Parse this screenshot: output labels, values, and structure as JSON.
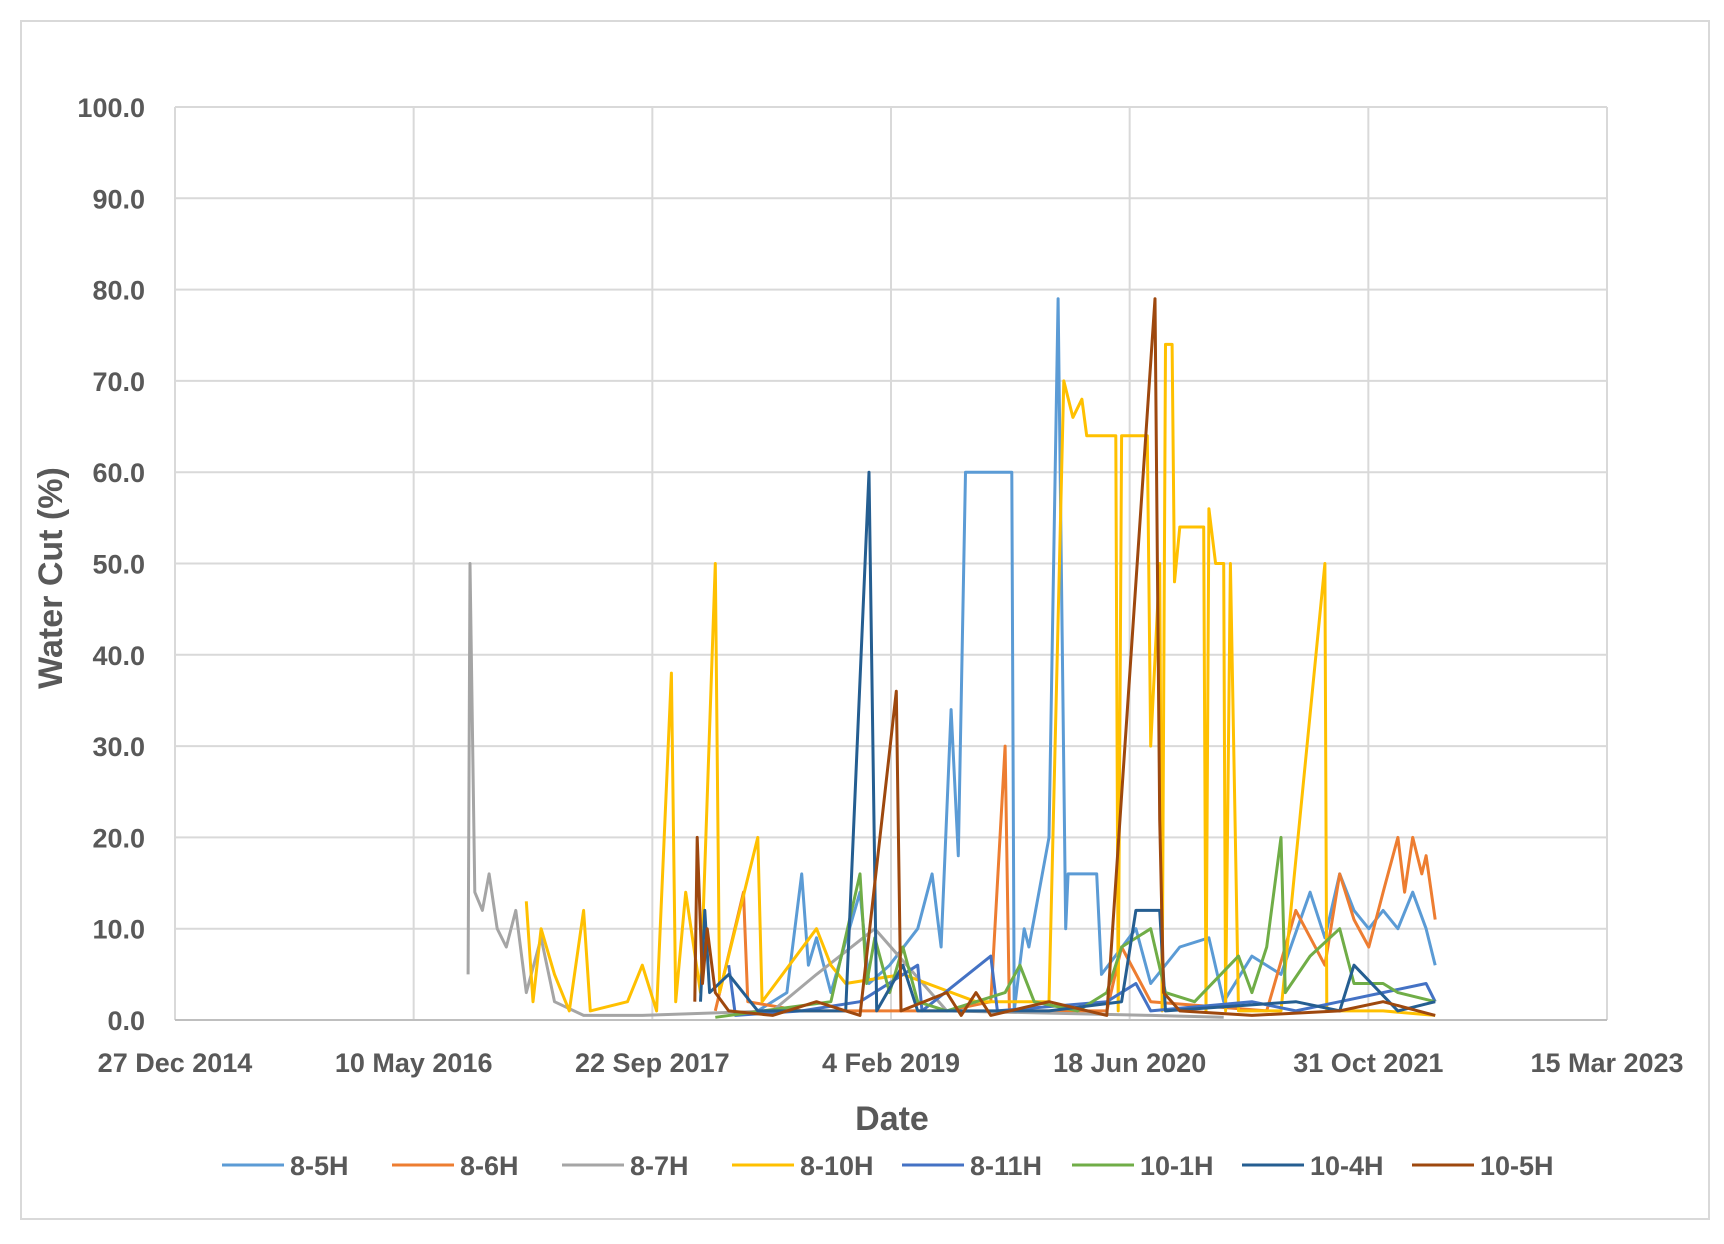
{
  "chart_data": {
    "type": "line",
    "title": "",
    "xlabel": "Date",
    "ylabel": "Water Cut   (%)",
    "xlim": [
      "2014-12-27",
      "2023-03-15"
    ],
    "ylim": [
      0,
      100
    ],
    "x_ticks": [
      "27 Dec 2014",
      "10 May 2016",
      "22 Sep 2017",
      "4 Feb 2019",
      "18 Jun 2020",
      "31 Oct 2021",
      "15 Mar 2023"
    ],
    "y_ticks": [
      "0.0",
      "10.0",
      "20.0",
      "30.0",
      "40.0",
      "50.0",
      "60.0",
      "70.0",
      "80.0",
      "90.0",
      "100.0"
    ],
    "grid": true,
    "legend_position": "bottom",
    "series": [
      {
        "name": "8-5H",
        "color": "#5b9bd5",
        "points": [
          [
            "2018-05-01",
            1
          ],
          [
            "2018-07-01",
            3
          ],
          [
            "2018-08-01",
            16
          ],
          [
            "2018-08-15",
            6
          ],
          [
            "2018-09-01",
            9
          ],
          [
            "2018-10-01",
            3
          ],
          [
            "2018-12-01",
            14
          ],
          [
            "2018-12-20",
            4
          ],
          [
            "2019-02-01",
            6
          ],
          [
            "2019-04-01",
            10
          ],
          [
            "2019-05-01",
            16
          ],
          [
            "2019-05-20",
            8
          ],
          [
            "2019-06-10",
            34
          ],
          [
            "2019-06-25",
            18
          ],
          [
            "2019-07-10",
            60
          ],
          [
            "2019-10-15",
            60
          ],
          [
            "2019-10-20",
            1
          ],
          [
            "2019-11-10",
            10
          ],
          [
            "2019-11-20",
            8
          ],
          [
            "2020-01-01",
            20
          ],
          [
            "2020-01-20",
            79
          ],
          [
            "2020-02-05",
            10
          ],
          [
            "2020-02-10",
            16
          ],
          [
            "2020-04-10",
            16
          ],
          [
            "2020-04-20",
            5
          ],
          [
            "2020-07-01",
            10
          ],
          [
            "2020-08-01",
            4
          ],
          [
            "2020-10-01",
            8
          ],
          [
            "2020-12-01",
            9
          ],
          [
            "2021-01-01",
            2
          ],
          [
            "2021-03-01",
            7
          ],
          [
            "2021-05-01",
            5
          ],
          [
            "2021-07-01",
            14
          ],
          [
            "2021-08-01",
            9
          ],
          [
            "2021-09-01",
            16
          ],
          [
            "2021-10-01",
            12
          ],
          [
            "2021-11-01",
            10
          ],
          [
            "2021-12-01",
            12
          ],
          [
            "2022-01-01",
            10
          ],
          [
            "2022-02-01",
            14
          ],
          [
            "2022-03-01",
            10
          ],
          [
            "2022-03-20",
            6
          ]
        ]
      },
      {
        "name": "8-6H",
        "color": "#ed7d31",
        "points": [
          [
            "2018-02-01",
            1
          ],
          [
            "2018-04-01",
            14
          ],
          [
            "2018-04-10",
            2
          ],
          [
            "2018-08-01",
            1
          ],
          [
            "2019-01-01",
            1
          ],
          [
            "2019-06-01",
            1
          ],
          [
            "2019-09-01",
            2
          ],
          [
            "2019-10-01",
            30
          ],
          [
            "2019-10-10",
            1
          ],
          [
            "2020-05-01",
            1
          ],
          [
            "2020-06-01",
            8
          ],
          [
            "2020-08-01",
            2
          ],
          [
            "2021-04-01",
            1
          ],
          [
            "2021-06-01",
            12
          ],
          [
            "2021-08-01",
            6
          ],
          [
            "2021-09-01",
            16
          ],
          [
            "2021-10-01",
            11
          ],
          [
            "2021-11-01",
            8
          ],
          [
            "2021-12-01",
            14
          ],
          [
            "2022-01-01",
            20
          ],
          [
            "2022-01-15",
            14
          ],
          [
            "2022-02-01",
            20
          ],
          [
            "2022-02-20",
            16
          ],
          [
            "2022-03-01",
            18
          ],
          [
            "2022-03-20",
            11
          ]
        ]
      },
      {
        "name": "8-7H",
        "color": "#a5a5a5",
        "points": [
          [
            "2016-09-01",
            5
          ],
          [
            "2016-09-05",
            50
          ],
          [
            "2016-09-15",
            14
          ],
          [
            "2016-10-01",
            12
          ],
          [
            "2016-10-15",
            16
          ],
          [
            "2016-11-01",
            10
          ],
          [
            "2016-11-20",
            8
          ],
          [
            "2016-12-10",
            12
          ],
          [
            "2017-01-01",
            3
          ],
          [
            "2017-02-01",
            9
          ],
          [
            "2017-03-01",
            2
          ],
          [
            "2017-05-01",
            0.5
          ],
          [
            "2017-09-01",
            0.5
          ],
          [
            "2018-06-01",
            1
          ],
          [
            "2018-09-01",
            5
          ],
          [
            "2019-01-01",
            10
          ],
          [
            "2019-06-01",
            1
          ],
          [
            "2020-08-01",
            0.5
          ],
          [
            "2021-01-01",
            0.3
          ]
        ]
      },
      {
        "name": "8-10H",
        "color": "#ffc000",
        "points": [
          [
            "2017-01-01",
            13
          ],
          [
            "2017-01-15",
            2
          ],
          [
            "2017-02-01",
            10
          ],
          [
            "2017-03-01",
            5
          ],
          [
            "2017-04-01",
            1
          ],
          [
            "2017-05-01",
            12
          ],
          [
            "2017-05-15",
            1
          ],
          [
            "2017-08-01",
            2
          ],
          [
            "2017-09-01",
            6
          ],
          [
            "2017-10-01",
            1
          ],
          [
            "2017-11-01",
            38
          ],
          [
            "2017-11-10",
            2
          ],
          [
            "2017-12-01",
            14
          ],
          [
            "2018-01-01",
            3
          ],
          [
            "2018-02-01",
            50
          ],
          [
            "2018-02-10",
            3
          ],
          [
            "2018-05-01",
            20
          ],
          [
            "2018-05-10",
            2
          ],
          [
            "2018-09-01",
            10
          ],
          [
            "2018-10-01",
            6
          ],
          [
            "2018-11-01",
            4
          ],
          [
            "2019-03-01",
            5
          ],
          [
            "2019-08-01",
            2
          ],
          [
            "2020-01-01",
            2
          ],
          [
            "2020-02-01",
            70
          ],
          [
            "2020-02-20",
            66
          ],
          [
            "2020-03-10",
            68
          ],
          [
            "2020-03-20",
            64
          ],
          [
            "2020-05-20",
            64
          ],
          [
            "2020-05-25",
            1
          ],
          [
            "2020-06-01",
            64
          ],
          [
            "2020-07-25",
            64
          ],
          [
            "2020-08-01",
            30
          ],
          [
            "2020-08-20",
            50
          ],
          [
            "2020-08-25",
            1
          ],
          [
            "2020-09-01",
            74
          ],
          [
            "2020-09-15",
            74
          ],
          [
            "2020-09-20",
            48
          ],
          [
            "2020-10-01",
            54
          ],
          [
            "2020-11-20",
            54
          ],
          [
            "2020-11-25",
            1
          ],
          [
            "2020-12-01",
            56
          ],
          [
            "2020-12-15",
            50
          ],
          [
            "2021-01-01",
            50
          ],
          [
            "2021-01-05",
            1
          ],
          [
            "2021-01-15",
            50
          ],
          [
            "2021-02-01",
            1
          ],
          [
            "2021-05-01",
            1
          ],
          [
            "2021-08-01",
            50
          ],
          [
            "2021-08-05",
            1
          ],
          [
            "2021-12-01",
            1
          ],
          [
            "2022-03-20",
            0.5
          ]
        ]
      },
      {
        "name": "8-11H",
        "color": "#4472c4",
        "points": [
          [
            "2018-03-01",
            6
          ],
          [
            "2018-03-15",
            0.5
          ],
          [
            "2018-08-01",
            1
          ],
          [
            "2018-12-01",
            2
          ],
          [
            "2019-04-01",
            6
          ],
          [
            "2019-04-10",
            1
          ],
          [
            "2019-09-01",
            7
          ],
          [
            "2019-09-15",
            1
          ],
          [
            "2020-05-01",
            2
          ],
          [
            "2020-07-01",
            4
          ],
          [
            "2020-08-01",
            1
          ],
          [
            "2021-03-01",
            2
          ],
          [
            "2021-06-01",
            1
          ],
          [
            "2021-09-01",
            2
          ],
          [
            "2022-03-01",
            4
          ],
          [
            "2022-03-20",
            2
          ]
        ]
      },
      {
        "name": "10-1H",
        "color": "#70ad47",
        "points": [
          [
            "2018-02-01",
            0.3
          ],
          [
            "2018-10-01",
            2
          ],
          [
            "2018-12-01",
            16
          ],
          [
            "2018-12-15",
            4
          ],
          [
            "2019-01-01",
            9
          ],
          [
            "2019-02-01",
            3
          ],
          [
            "2019-03-01",
            8
          ],
          [
            "2019-04-01",
            2
          ],
          [
            "2019-06-01",
            1
          ],
          [
            "2019-10-01",
            3
          ],
          [
            "2019-11-01",
            6
          ],
          [
            "2019-12-01",
            2
          ],
          [
            "2020-03-01",
            1
          ],
          [
            "2020-05-01",
            3
          ],
          [
            "2020-06-01",
            8
          ],
          [
            "2020-08-01",
            10
          ],
          [
            "2020-09-01",
            3
          ],
          [
            "2020-11-01",
            2
          ],
          [
            "2021-02-01",
            7
          ],
          [
            "2021-03-01",
            3
          ],
          [
            "2021-04-01",
            8
          ],
          [
            "2021-05-01",
            20
          ],
          [
            "2021-05-10",
            3
          ],
          [
            "2021-07-01",
            7
          ],
          [
            "2021-09-01",
            10
          ],
          [
            "2021-10-01",
            4
          ],
          [
            "2021-12-01",
            4
          ],
          [
            "2022-01-01",
            3
          ],
          [
            "2022-03-20",
            2
          ]
        ]
      },
      {
        "name": "10-4H",
        "color": "#255e91",
        "points": [
          [
            "2018-01-01",
            2
          ],
          [
            "2018-01-10",
            12
          ],
          [
            "2018-01-20",
            3
          ],
          [
            "2018-03-01",
            5
          ],
          [
            "2018-05-01",
            1
          ],
          [
            "2018-11-01",
            1
          ],
          [
            "2018-12-20",
            60
          ],
          [
            "2019-01-05",
            1
          ],
          [
            "2019-03-01",
            6
          ],
          [
            "2019-04-01",
            1
          ],
          [
            "2019-09-01",
            1
          ],
          [
            "2020-01-01",
            1
          ],
          [
            "2020-06-01",
            2
          ],
          [
            "2020-07-01",
            12
          ],
          [
            "2020-08-20",
            12
          ],
          [
            "2020-09-01",
            1
          ],
          [
            "2021-06-01",
            2
          ],
          [
            "2021-09-01",
            1
          ],
          [
            "2021-10-01",
            6
          ],
          [
            "2022-01-01",
            1
          ],
          [
            "2022-03-20",
            2
          ]
        ]
      },
      {
        "name": "10-5H",
        "color": "#9e480e",
        "points": [
          [
            "2017-12-20",
            2
          ],
          [
            "2017-12-25",
            20
          ],
          [
            "2018-01-05",
            4
          ],
          [
            "2018-01-15",
            10
          ],
          [
            "2018-02-01",
            3
          ],
          [
            "2018-03-01",
            1
          ],
          [
            "2018-06-01",
            0.5
          ],
          [
            "2018-09-01",
            2
          ],
          [
            "2018-12-01",
            0.5
          ],
          [
            "2019-02-15",
            36
          ],
          [
            "2019-02-25",
            1
          ],
          [
            "2019-06-01",
            3
          ],
          [
            "2019-07-01",
            0.5
          ],
          [
            "2019-08-01",
            3
          ],
          [
            "2019-09-01",
            0.5
          ],
          [
            "2020-01-01",
            2
          ],
          [
            "2020-05-01",
            0.5
          ],
          [
            "2020-08-10",
            79
          ],
          [
            "2020-08-20",
            22
          ],
          [
            "2020-08-28",
            3
          ],
          [
            "2020-10-01",
            1
          ],
          [
            "2021-03-01",
            0.5
          ],
          [
            "2021-09-01",
            1
          ],
          [
            "2021-12-01",
            2
          ],
          [
            "2022-03-20",
            0.5
          ]
        ]
      }
    ]
  }
}
